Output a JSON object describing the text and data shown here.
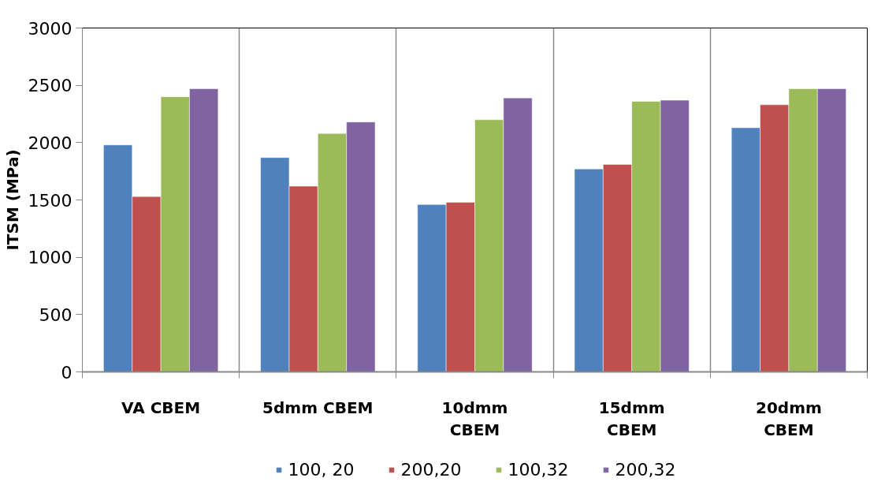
{
  "chart_data": {
    "type": "bar",
    "ylabel": "ITSM (MPa)",
    "categories": [
      "VA CBEM",
      "5dmm CBEM",
      "10dmm CBEM",
      "15dmm CBEM",
      "20dmm CBEM"
    ],
    "series": [
      {
        "name": "100, 20",
        "color": "#4f81bd",
        "values": [
          1980,
          1870,
          1460,
          1770,
          2130
        ]
      },
      {
        "name": "200,20",
        "color": "#c0504d",
        "values": [
          1530,
          1620,
          1480,
          1810,
          2330
        ]
      },
      {
        "name": "100,32",
        "color": "#9bbb59",
        "values": [
          2400,
          2080,
          2200,
          2360,
          2470
        ]
      },
      {
        "name": "200,32",
        "color": "#8064a2",
        "values": [
          2470,
          2180,
          2390,
          2370,
          2470
        ]
      }
    ],
    "ylim": [
      0,
      3000
    ],
    "yticks": [
      0,
      500,
      1000,
      1500,
      2000,
      2500,
      3000
    ],
    "grid": "x",
    "legend": "bottom"
  }
}
